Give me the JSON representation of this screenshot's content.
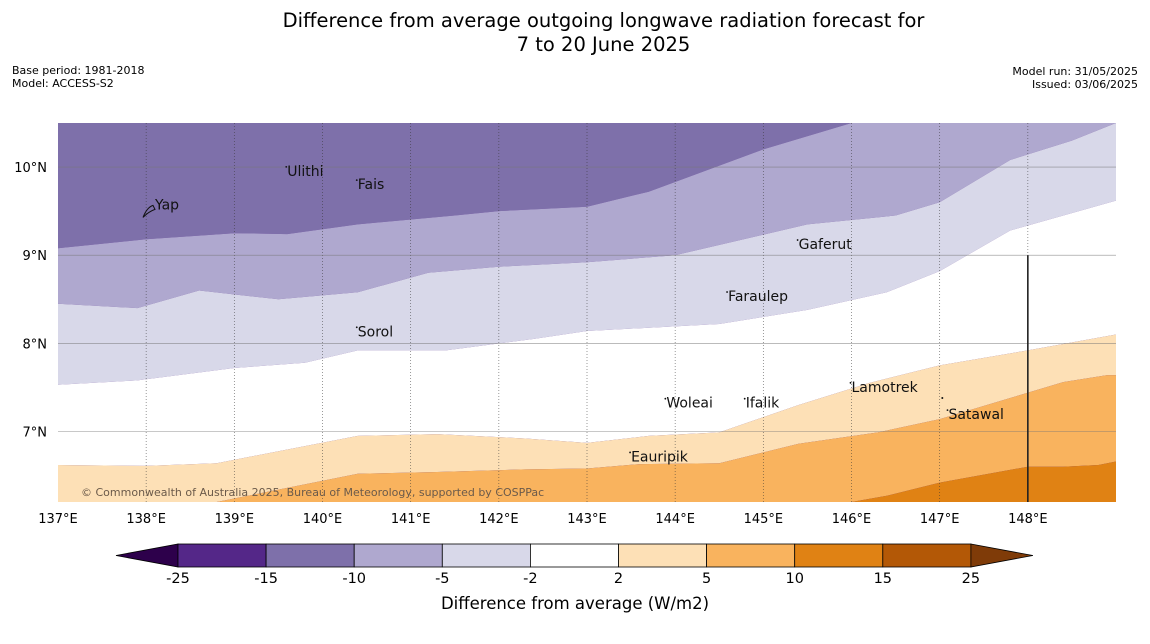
{
  "title": {
    "line1": "Difference from average outgoing longwave radiation forecast for",
    "line2": "7 to 20 June 2025"
  },
  "meta": {
    "base_period": "Base period: 1981-2018",
    "model": "Model: ACCESS-S2",
    "model_run": "Model run: 31/05/2025",
    "issued": "Issued: 03/06/2025"
  },
  "copyright": "© Commonwealth of Australia 2025, Bureau of Meteorology, supported by COSPPac",
  "map": {
    "lon_range": [
      137.0,
      149.0
    ],
    "lat_range": [
      6.2,
      10.5
    ],
    "x_ticks": [
      137,
      138,
      139,
      140,
      141,
      142,
      143,
      144,
      145,
      146,
      147,
      148
    ],
    "x_tick_labels": [
      "137°E",
      "138°E",
      "139°E",
      "140°E",
      "141°E",
      "142°E",
      "143°E",
      "144°E",
      "145°E",
      "146°E",
      "147°E",
      "148°E"
    ],
    "y_ticks": [
      7,
      8,
      9,
      10
    ],
    "y_tick_labels": [
      "7°N",
      "8°N",
      "9°N",
      "10°N"
    ],
    "places": [
      {
        "name": "Ulithi",
        "lon": 139.6,
        "lat": 9.9
      },
      {
        "name": "Fais",
        "lon": 140.4,
        "lat": 9.75
      },
      {
        "name": "Yap",
        "lon": 138.1,
        "lat": 9.52
      },
      {
        "name": "Gaferut",
        "lon": 145.4,
        "lat": 9.07
      },
      {
        "name": "Faraulep",
        "lon": 144.6,
        "lat": 8.48
      },
      {
        "name": "Sorol",
        "lon": 140.4,
        "lat": 8.08
      },
      {
        "name": "Woleai",
        "lon": 143.9,
        "lat": 7.27
      },
      {
        "name": "Ifalik",
        "lon": 144.8,
        "lat": 7.27
      },
      {
        "name": "Lamotrek",
        "lon": 146.0,
        "lat": 7.45
      },
      {
        "name": "Satawal",
        "lon": 147.1,
        "lat": 7.14
      },
      {
        "name": "Eauripik",
        "lon": 143.5,
        "lat": 6.66
      }
    ],
    "boundary_line": {
      "lon": 148.0,
      "lat_top": 9.0,
      "lat_bottom": 6.2
    },
    "fills": [
      {
        "color": "#7e70aa",
        "upper": [
          [
            137,
            10.5
          ],
          [
            149,
            10.5
          ]
        ],
        "lower": [
          [
            137,
            9.08
          ],
          [
            138,
            9.18
          ],
          [
            139,
            9.25
          ],
          [
            139.6,
            9.24
          ],
          [
            140.4,
            9.35
          ],
          [
            141.5,
            9.45
          ],
          [
            142,
            9.5
          ],
          [
            143,
            9.55
          ],
          [
            143.7,
            9.72
          ],
          [
            145,
            10.2
          ],
          [
            146,
            10.5
          ],
          [
            149,
            10.5
          ]
        ]
      },
      {
        "color": "#afa8cf",
        "upper": [
          [
            137,
            9.08
          ],
          [
            138,
            9.18
          ],
          [
            139,
            9.25
          ],
          [
            139.6,
            9.24
          ],
          [
            140.4,
            9.35
          ],
          [
            141.5,
            9.45
          ],
          [
            142,
            9.5
          ],
          [
            143,
            9.55
          ],
          [
            143.7,
            9.72
          ],
          [
            145,
            10.2
          ],
          [
            146,
            10.5
          ],
          [
            149,
            10.5
          ]
        ],
        "lower": [
          [
            137,
            8.45
          ],
          [
            137.9,
            8.4
          ],
          [
            138.6,
            8.6
          ],
          [
            139.5,
            8.5
          ],
          [
            140.4,
            8.58
          ],
          [
            141.2,
            8.8
          ],
          [
            142,
            8.87
          ],
          [
            143,
            8.92
          ],
          [
            144,
            9.0
          ],
          [
            145.5,
            9.35
          ],
          [
            146.5,
            9.45
          ],
          [
            147,
            9.6
          ],
          [
            147.8,
            10.08
          ],
          [
            148.5,
            10.3
          ],
          [
            149,
            10.5
          ]
        ]
      },
      {
        "color": "#d8d8e9",
        "upper": [
          [
            137,
            8.45
          ],
          [
            137.9,
            8.4
          ],
          [
            138.6,
            8.6
          ],
          [
            139.5,
            8.5
          ],
          [
            140.4,
            8.58
          ],
          [
            141.2,
            8.8
          ],
          [
            142,
            8.87
          ],
          [
            143,
            8.92
          ],
          [
            144,
            9.0
          ],
          [
            145.5,
            9.35
          ],
          [
            146.5,
            9.45
          ],
          [
            147,
            9.6
          ],
          [
            147.8,
            10.08
          ],
          [
            148.5,
            10.3
          ],
          [
            149,
            10.5
          ]
        ],
        "lower": [
          [
            137,
            7.53
          ],
          [
            137.9,
            7.58
          ],
          [
            139,
            7.72
          ],
          [
            139.8,
            7.78
          ],
          [
            140.4,
            7.92
          ],
          [
            141.4,
            7.92
          ],
          [
            142.4,
            8.05
          ],
          [
            143,
            8.14
          ],
          [
            144.5,
            8.22
          ],
          [
            145.5,
            8.38
          ],
          [
            146.4,
            8.58
          ],
          [
            147,
            8.82
          ],
          [
            147.8,
            9.28
          ],
          [
            149,
            9.62
          ]
        ]
      },
      {
        "color": "#ffffff",
        "upper": [
          [
            137,
            7.53
          ],
          [
            137.9,
            7.58
          ],
          [
            139,
            7.72
          ],
          [
            139.8,
            7.78
          ],
          [
            140.4,
            7.92
          ],
          [
            141.4,
            7.92
          ],
          [
            142.4,
            8.05
          ],
          [
            143,
            8.14
          ],
          [
            144.5,
            8.22
          ],
          [
            145.5,
            8.38
          ],
          [
            146.4,
            8.58
          ],
          [
            147,
            8.82
          ],
          [
            147.8,
            9.28
          ],
          [
            149,
            9.62
          ]
        ],
        "lower": [
          [
            137,
            6.62
          ],
          [
            138,
            6.61
          ],
          [
            138.8,
            6.64
          ],
          [
            140.4,
            6.95
          ],
          [
            141.3,
            6.97
          ],
          [
            142.3,
            6.92
          ],
          [
            143,
            6.87
          ],
          [
            143.7,
            6.95
          ],
          [
            144.5,
            6.99
          ],
          [
            145.4,
            7.3
          ],
          [
            146.2,
            7.55
          ],
          [
            147,
            7.75
          ],
          [
            148,
            7.92
          ],
          [
            149,
            8.1
          ]
        ]
      },
      {
        "color": "#fde0b6",
        "upper": [
          [
            137,
            6.62
          ],
          [
            138,
            6.61
          ],
          [
            138.8,
            6.64
          ],
          [
            140.4,
            6.95
          ],
          [
            141.3,
            6.97
          ],
          [
            142.3,
            6.92
          ],
          [
            143,
            6.87
          ],
          [
            143.7,
            6.95
          ],
          [
            144.5,
            6.99
          ],
          [
            145.4,
            7.3
          ],
          [
            146.2,
            7.55
          ],
          [
            147,
            7.75
          ],
          [
            148,
            7.92
          ],
          [
            149,
            8.1
          ]
        ],
        "lower": [
          [
            137,
            6.2
          ],
          [
            138.8,
            6.2
          ],
          [
            140.4,
            6.52
          ],
          [
            141.3,
            6.54
          ],
          [
            142.3,
            6.57
          ],
          [
            143,
            6.58
          ],
          [
            143.6,
            6.63
          ],
          [
            144.5,
            6.64
          ],
          [
            145.4,
            6.86
          ],
          [
            146.3,
            6.99
          ],
          [
            147,
            7.14
          ],
          [
            147.8,
            7.38
          ],
          [
            148.4,
            7.56
          ],
          [
            148.9,
            7.64
          ],
          [
            149,
            7.64
          ]
        ]
      },
      {
        "color": "#f9b35e",
        "upper": [
          [
            137,
            6.2
          ],
          [
            138.8,
            6.2
          ],
          [
            140.4,
            6.52
          ],
          [
            141.3,
            6.54
          ],
          [
            142.3,
            6.57
          ],
          [
            143,
            6.58
          ],
          [
            143.6,
            6.63
          ],
          [
            144.5,
            6.64
          ],
          [
            145.4,
            6.86
          ],
          [
            146.3,
            6.99
          ],
          [
            147,
            7.14
          ],
          [
            147.8,
            7.38
          ],
          [
            148.4,
            7.56
          ],
          [
            148.9,
            7.64
          ],
          [
            149,
            7.64
          ]
        ],
        "lower": [
          [
            137,
            6.2
          ],
          [
            146,
            6.2
          ],
          [
            146.4,
            6.27
          ],
          [
            147,
            6.42
          ],
          [
            148,
            6.6
          ],
          [
            148.4,
            6.6
          ],
          [
            148.8,
            6.62
          ],
          [
            149,
            6.66
          ]
        ]
      },
      {
        "color": "#e08214",
        "upper": [
          [
            137,
            6.2
          ],
          [
            146,
            6.2
          ],
          [
            146.4,
            6.27
          ],
          [
            147,
            6.42
          ],
          [
            148,
            6.6
          ],
          [
            148.4,
            6.6
          ],
          [
            148.8,
            6.62
          ],
          [
            149,
            6.66
          ]
        ],
        "lower": [
          [
            137,
            6.2
          ],
          [
            149,
            6.2
          ]
        ]
      }
    ]
  },
  "colorbar": {
    "label": "Difference from average (W/m2)",
    "ticks": [
      "-25",
      "-15",
      "-10",
      "-5",
      "-2",
      "2",
      "5",
      "10",
      "15",
      "25"
    ],
    "colors": [
      "#542788",
      "#7e70aa",
      "#afa8cf",
      "#d8d8e9",
      "#ffffff",
      "#fde0b6",
      "#f9b35e",
      "#e08214",
      "#b35806"
    ],
    "extend_low_color": "#2d004b",
    "extend_high_color": "#7f3b08"
  }
}
